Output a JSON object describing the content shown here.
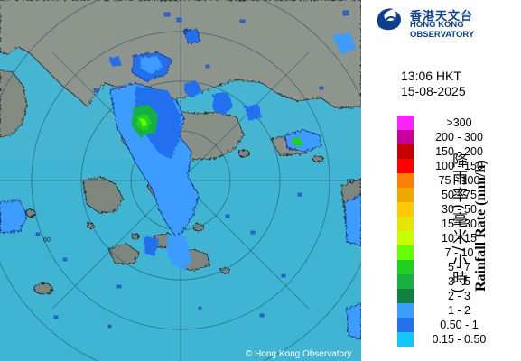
{
  "header": {
    "logo_cn": "香港天文台",
    "logo_en": "HONG KONG OBSERVATORY"
  },
  "timestamp": {
    "time": "13:06 HKT",
    "date": "15-08-2025"
  },
  "legend": {
    "title_cn": "降雨率(毫米/小時)",
    "title_en": "Rainfall Rate (mm/h)",
    "items": [
      {
        "label": ">300",
        "color": "#ff20ff"
      },
      {
        "label": "200 - 300",
        "color": "#c8009c"
      },
      {
        "label": "150 - 200",
        "color": "#c80000"
      },
      {
        "label": "100 - 150",
        "color": "#ff0000"
      },
      {
        "label": "75 - 100",
        "color": "#ff8000"
      },
      {
        "label": "50 - 75",
        "color": "#f0a800"
      },
      {
        "label": "30 - 50",
        "color": "#ffc800"
      },
      {
        "label": "15 - 30",
        "color": "#e6e600"
      },
      {
        "label": "10 - 15",
        "color": "#c8ff00"
      },
      {
        "label": "7 - 10",
        "color": "#64ff00"
      },
      {
        "label": "5 - 7",
        "color": "#20d020"
      },
      {
        "label": "3 - 5",
        "color": "#18b040"
      },
      {
        "label": "2 - 3",
        "color": "#108040"
      },
      {
        "label": "1 - 2",
        "color": "#3c9cff"
      },
      {
        "label": "0.50 - 1",
        "color": "#2070f0"
      },
      {
        "label": "0.15 - 0.50",
        "color": "#10c8ff"
      }
    ]
  },
  "map": {
    "ring_label": "60",
    "copyright": "© Hong Kong Observatory",
    "sea_color": "#3fb5d3",
    "land_color": "#8a9288"
  }
}
